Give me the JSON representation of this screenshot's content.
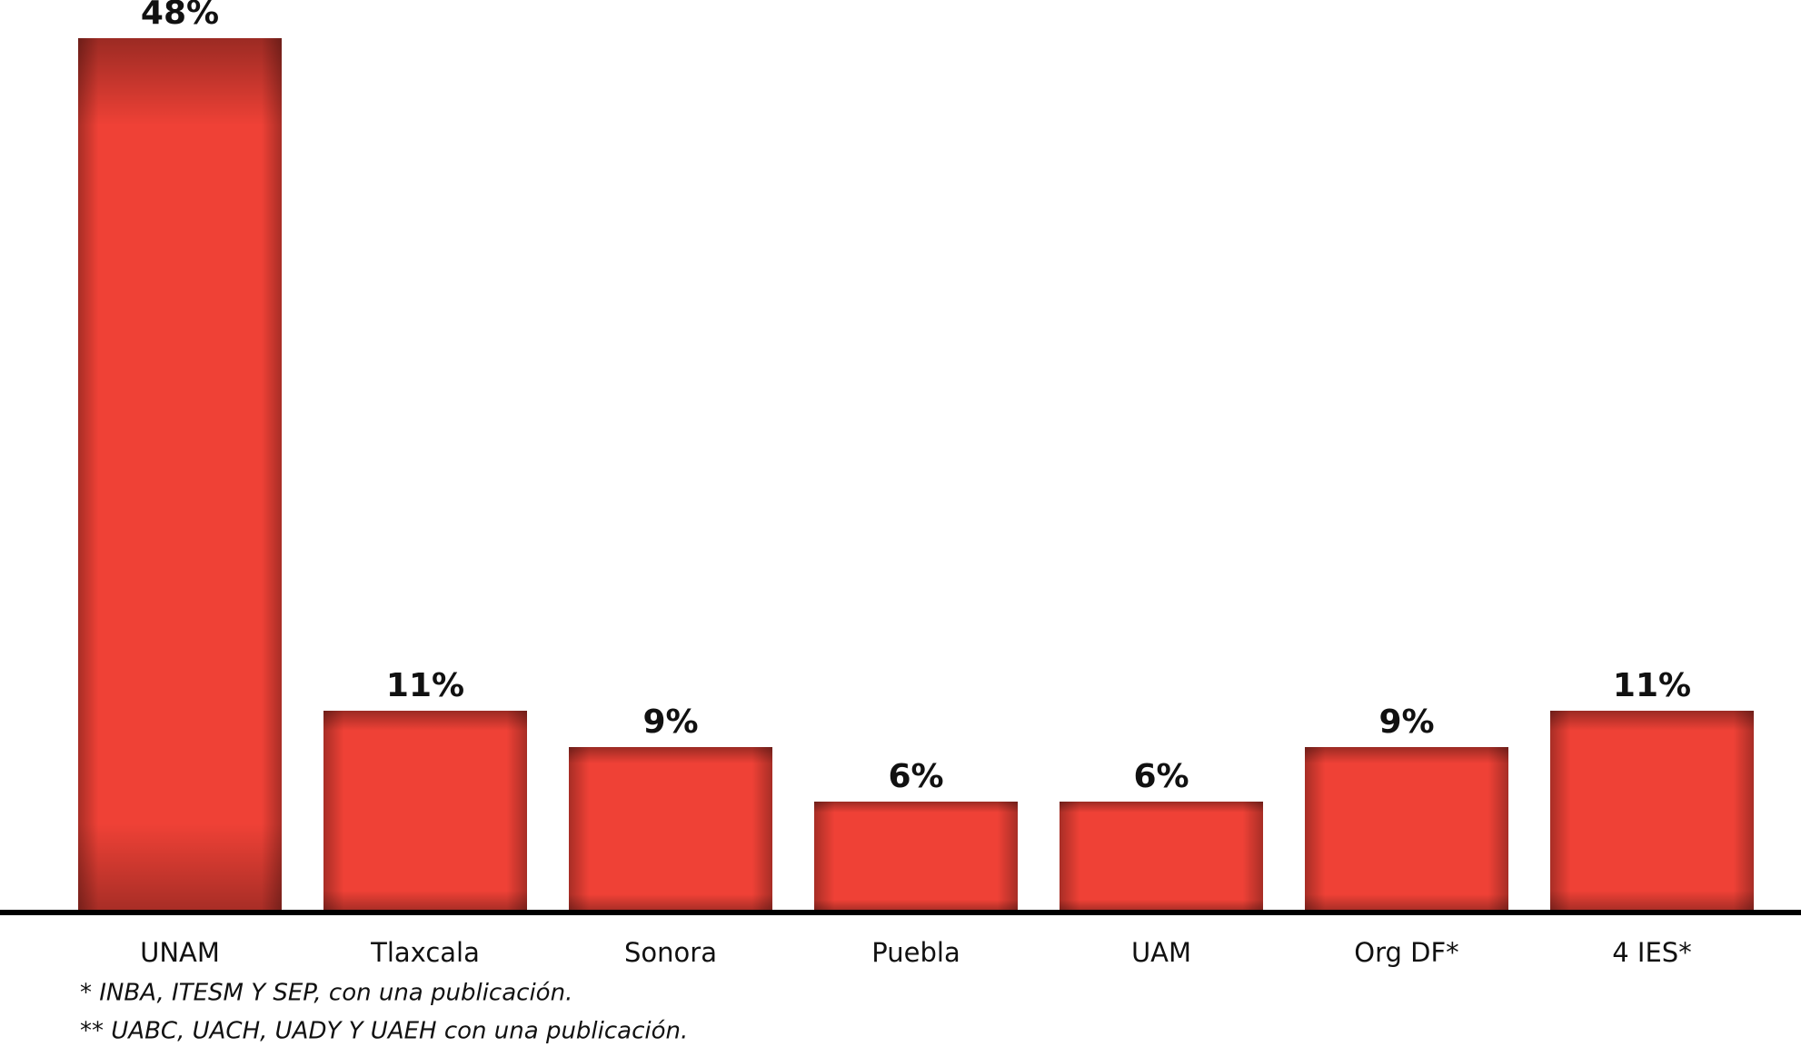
{
  "chart_data": {
    "type": "bar",
    "categories": [
      "UNAM",
      "Tlaxcala",
      "Sonora",
      "Puebla",
      "UAM",
      "Org DF*",
      "4 IES*"
    ],
    "values": [
      48,
      11,
      9,
      6,
      6,
      9,
      11
    ],
    "value_labels": [
      "48%",
      "11%",
      "9%",
      "6%",
      "6%",
      "9%",
      "11%"
    ],
    "color": "#ef4136",
    "notes": [
      "* INBA, ITESM Y SEP, con una publicación.",
      "** UABC, UACH, UADY Y UAEH con una publicación."
    ]
  }
}
